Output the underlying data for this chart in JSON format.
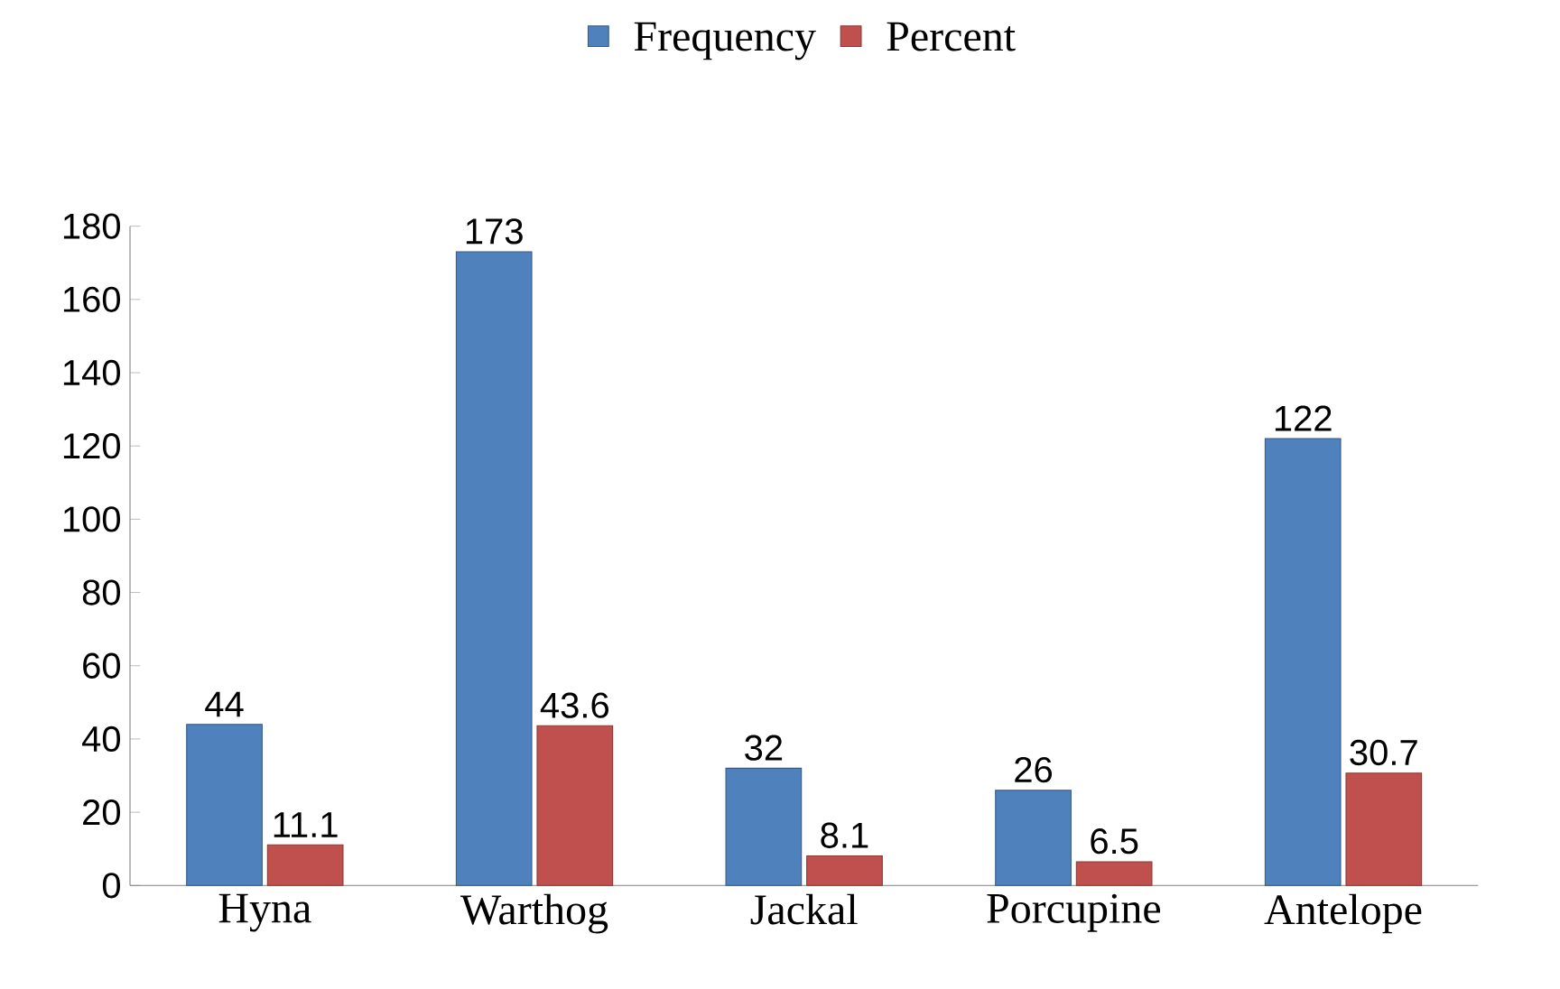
{
  "chart_data": {
    "type": "bar",
    "categories": [
      "Hyna",
      "Warthog",
      "Jackal",
      "Porcupine",
      "Antelope"
    ],
    "series": [
      {
        "name": "Frequency",
        "color": "#4f81bd",
        "values": [
          44,
          173,
          32,
          26,
          122
        ]
      },
      {
        "name": "Percent",
        "color": "#c0504d",
        "values": [
          11.1,
          43.6,
          8.1,
          6.5,
          30.7
        ]
      }
    ],
    "ylim": [
      0,
      180
    ],
    "yticks": [
      0,
      20,
      40,
      60,
      80,
      100,
      120,
      140,
      160,
      180
    ],
    "data_labels": true,
    "legend": "top",
    "grid": false
  }
}
